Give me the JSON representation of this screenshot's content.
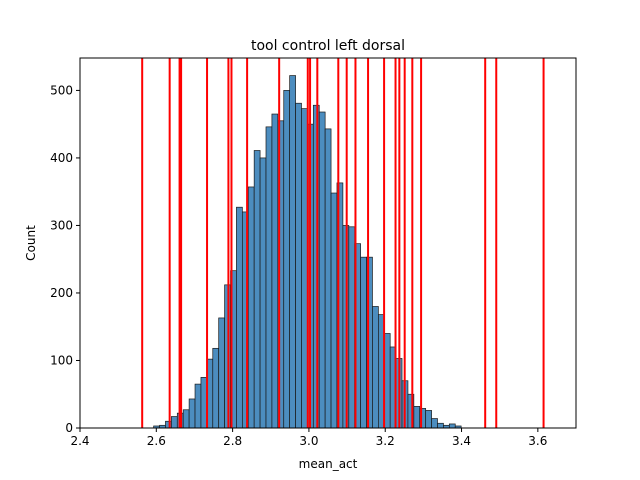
{
  "chart_data": {
    "type": "bar",
    "title": "tool control left dorsal",
    "xlabel": "mean_act",
    "ylabel": "Count",
    "xlim": [
      2.4,
      3.7
    ],
    "ylim": [
      0,
      548
    ],
    "xticks": [
      "2.4",
      "2.6",
      "2.8",
      "3.0",
      "3.2",
      "3.4",
      "3.6"
    ],
    "yticks": [
      "0",
      "100",
      "200",
      "300",
      "400",
      "500"
    ],
    "grid": false,
    "bar_color": "#4c8dbf",
    "bar_edge_color": "#1a1a1a",
    "vline_color": "#ff0000",
    "bins": {
      "start": 2.593,
      "width": 0.0155,
      "counts": [
        3,
        4,
        10,
        17,
        22,
        27,
        43,
        65,
        75,
        102,
        118,
        163,
        212,
        233,
        327,
        320,
        357,
        411,
        400,
        446,
        465,
        455,
        500,
        522,
        481,
        473,
        450,
        478,
        468,
        443,
        348,
        363,
        300,
        298,
        273,
        253,
        253,
        180,
        168,
        140,
        120,
        103,
        70,
        50,
        32,
        29,
        26,
        14,
        7,
        4,
        6,
        3
      ]
    },
    "vlines": [
      2.563,
      2.635,
      2.661,
      2.665,
      2.733,
      2.789,
      2.797,
      2.838,
      2.922,
      2.997,
      3.003,
      3.022,
      3.077,
      3.099,
      3.122,
      3.155,
      3.197,
      3.227,
      3.237,
      3.251,
      3.271,
      3.294,
      3.462,
      3.491,
      3.615
    ]
  }
}
